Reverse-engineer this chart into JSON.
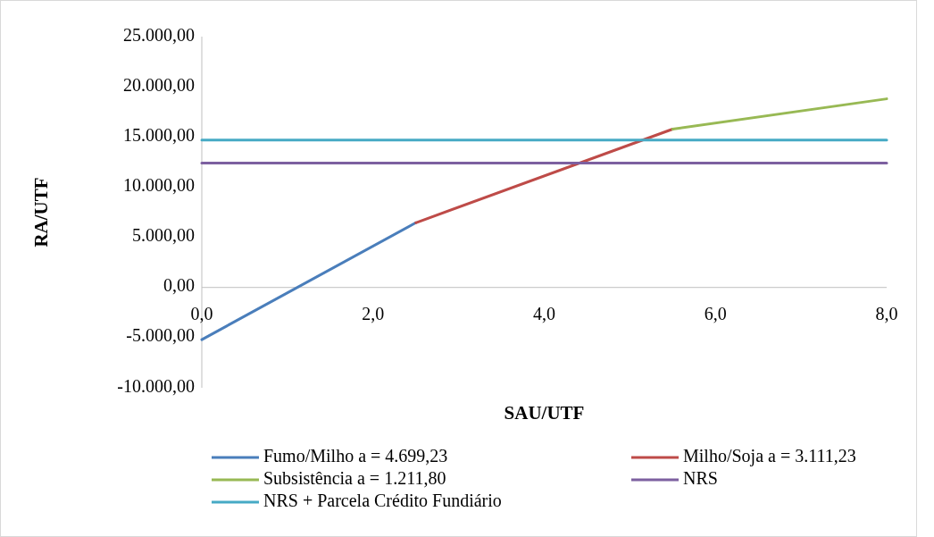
{
  "chart_data": {
    "type": "line",
    "xlabel": "SAU/UTF",
    "ylabel": "RA/UTF",
    "xlim": [
      0,
      8
    ],
    "xticks": [
      {
        "value": 0,
        "label": "0,0"
      },
      {
        "value": 2,
        "label": "2,0"
      },
      {
        "value": 4,
        "label": "4,0"
      },
      {
        "value": 6,
        "label": "6,0"
      },
      {
        "value": 8,
        "label": "8,0"
      }
    ],
    "ylim": [
      -10000,
      25000
    ],
    "yticks": [
      {
        "value": -10000,
        "label": "-10.000,00"
      },
      {
        "value": -5000,
        "label": "-5.000,00"
      },
      {
        "value": 0,
        "label": "0,00"
      },
      {
        "value": 5000,
        "label": "5.000,00"
      },
      {
        "value": 10000,
        "label": "10.000,00"
      },
      {
        "value": 15000,
        "label": "15.000,00"
      },
      {
        "value": 20000,
        "label": "20.000,00"
      },
      {
        "value": 25000,
        "label": "25.000,00"
      }
    ],
    "grid": false,
    "legend": "bottom",
    "marker": "none",
    "line_style": "solid",
    "series": [
      {
        "name": "Fumo/Milho a = 4.699,23",
        "color": "#4a7ebb",
        "x": [
          0,
          2.5
        ],
        "values": [
          -5200,
          6450
        ]
      },
      {
        "name": "Milho/Soja a = 3.111,23",
        "color": "#be4b48",
        "x": [
          2.5,
          5.5
        ],
        "values": [
          6450,
          15780
        ]
      },
      {
        "name": "Subsistência a = 1.211,80",
        "color": "#98b954",
        "x": [
          5.5,
          8
        ],
        "values": [
          15780,
          18800
        ]
      },
      {
        "name": "NRS",
        "color": "#7d60a0",
        "x": [
          0,
          8
        ],
        "values": [
          12400,
          12400
        ]
      },
      {
        "name": "NRS + Parcela Crédito Fundiário",
        "color": "#46aac5",
        "x": [
          0,
          8
        ],
        "values": [
          14700,
          14700
        ]
      }
    ]
  }
}
